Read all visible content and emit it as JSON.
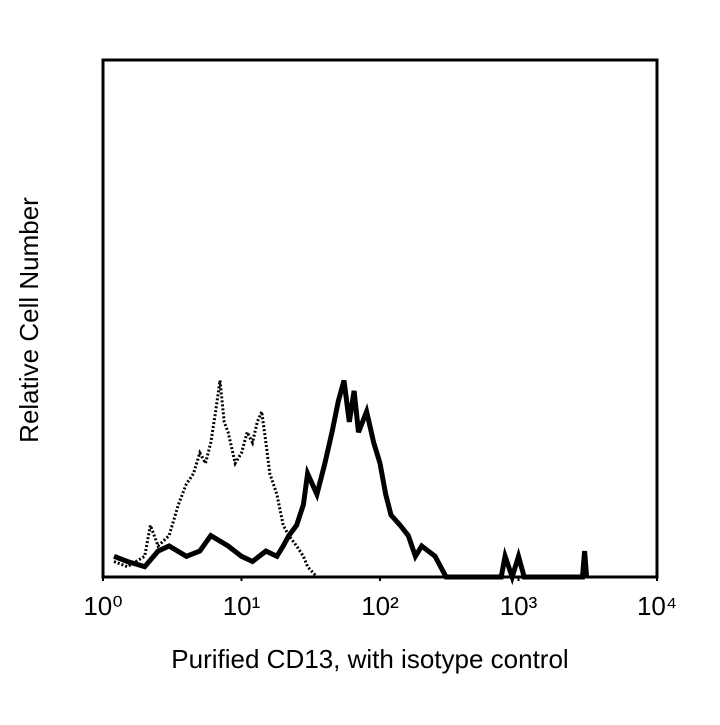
{
  "chart_data": {
    "type": "line",
    "x_label": "Purified CD13, with isotype control",
    "y_label": "Relative Cell Number",
    "xlog": true,
    "xlim": [
      1,
      10000
    ],
    "xticks": [
      {
        "value": 1,
        "label": "10⁰"
      },
      {
        "value": 10,
        "label": "10¹"
      },
      {
        "value": 100,
        "label": "10²"
      },
      {
        "value": 1000,
        "label": "10³"
      },
      {
        "value": 10000,
        "label": "10⁴"
      }
    ],
    "ylim": [
      0,
      100
    ],
    "series": [
      {
        "color": "#000000",
        "dashed": true,
        "width": 3,
        "x": [
          1.2,
          1.5,
          2,
          2.2,
          2.5,
          3,
          3.5,
          4,
          4.5,
          5,
          5.5,
          6,
          6.5,
          7,
          7.5,
          8,
          9,
          10,
          11,
          12,
          13,
          14,
          15,
          16,
          18,
          20,
          22,
          25,
          28,
          30,
          35
        ],
        "values": [
          3,
          2,
          4,
          10,
          6,
          8,
          14,
          18,
          20,
          24,
          22,
          26,
          32,
          38,
          30,
          28,
          22,
          24,
          28,
          26,
          30,
          32,
          26,
          20,
          16,
          10,
          8,
          6,
          4,
          2,
          0
        ]
      },
      {
        "color": "#000000",
        "dashed": false,
        "width": 5,
        "x": [
          1.2,
          1.5,
          2,
          2.5,
          3,
          4,
          5,
          6,
          8,
          10,
          12,
          15,
          18,
          20,
          22,
          25,
          28,
          30,
          35,
          40,
          45,
          50,
          55,
          60,
          65,
          70,
          80,
          90,
          100,
          110,
          120,
          140,
          160,
          180,
          200,
          250,
          300,
          750,
          800,
          900,
          1000,
          1100,
          2900,
          3000,
          3100
        ],
        "values": [
          4,
          3,
          2,
          5,
          6,
          4,
          5,
          8,
          6,
          4,
          3,
          5,
          4,
          6,
          8,
          10,
          14,
          20,
          16,
          22,
          28,
          34,
          38,
          30,
          36,
          28,
          32,
          26,
          22,
          16,
          12,
          10,
          8,
          4,
          6,
          4,
          0,
          0,
          4,
          0,
          4,
          0,
          0,
          5,
          0
        ]
      }
    ]
  }
}
